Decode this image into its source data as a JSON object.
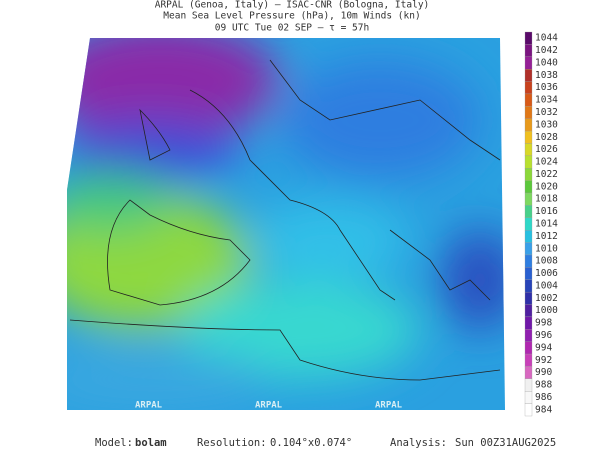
{
  "header": {
    "lines": [
      "ARPAL (Genoa, Italy)  –  ISAC-CNR (Bologna, Italy)",
      "Mean Sea Level Pressure (hPa), 10m Winds (kn)",
      "09 UTC Tue 02 SEP  –  τ = 57h"
    ]
  },
  "colorbar": {
    "ticks": [
      1044,
      1042,
      1040,
      1038,
      1036,
      1034,
      1032,
      1030,
      1028,
      1026,
      1024,
      1022,
      1020,
      1018,
      1016,
      1014,
      1012,
      1010,
      1008,
      1006,
      1004,
      1002,
      1000,
      998,
      996,
      994,
      992,
      990,
      988,
      986,
      984
    ],
    "colors": [
      "#5a0a6a",
      "#7a1480",
      "#952096",
      "#b0302a",
      "#c8421e",
      "#d85a18",
      "#e07818",
      "#e89a1c",
      "#f0c020",
      "#d8d828",
      "#b8e030",
      "#8cd83a",
      "#5cc83c",
      "#7ed860",
      "#48d08a",
      "#30d8c8",
      "#28c0e0",
      "#3aa0e8",
      "#2f7ee0",
      "#2a60d0",
      "#2844b8",
      "#3030a8",
      "#5020a0",
      "#7018a8",
      "#9020b0",
      "#b028b0",
      "#c840b8",
      "#d868c0",
      "#f0f0f0",
      "#f8f8f8",
      "#ffffff"
    ]
  },
  "watermark": "ARPAL",
  "footer": {
    "model_label": "Model:",
    "model": "bolam",
    "resolution_label": "Resolution:",
    "resolution": "0.104°x0.074°",
    "analysis_label": "Analysis:",
    "analysis": "Sun 00Z31AUG2025"
  }
}
